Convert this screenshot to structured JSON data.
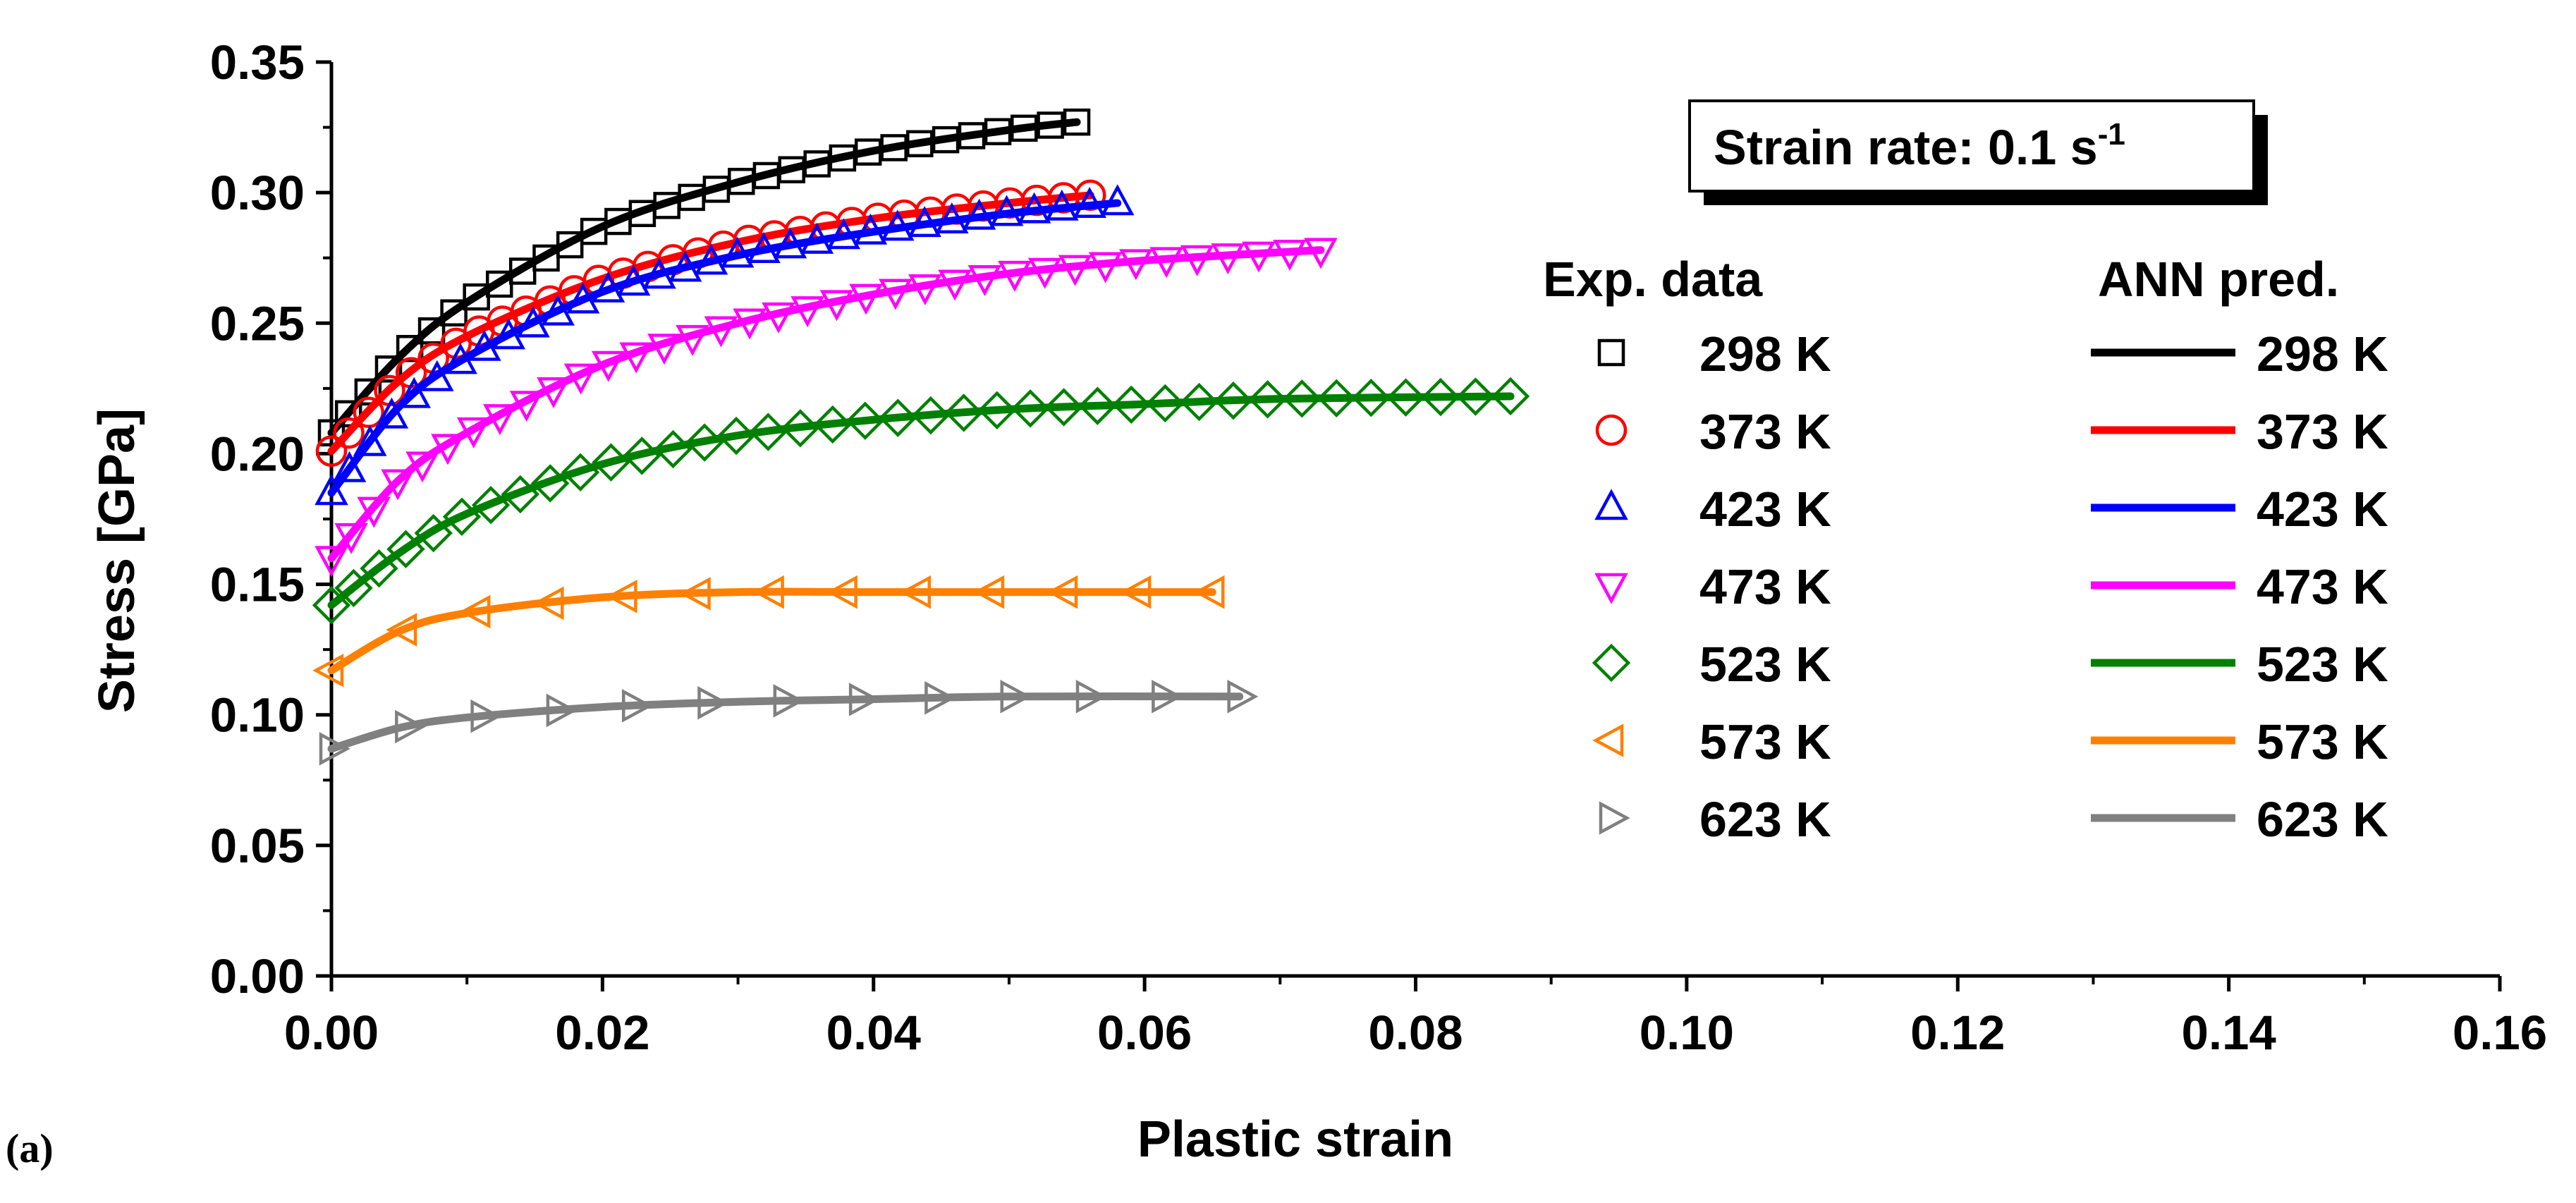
{
  "panel_label": "(a)",
  "chart_data": {
    "type": "line",
    "title": "",
    "xlabel": "Plastic strain",
    "ylabel": "Stress [GPa]",
    "xlim": [
      0.0,
      0.16
    ],
    "ylim": [
      0.0,
      0.35
    ],
    "xticks": [
      "0.00",
      "0.02",
      "0.04",
      "0.06",
      "0.08",
      "0.10",
      "0.12",
      "0.14",
      "0.16"
    ],
    "yticks": [
      "0.00",
      "0.05",
      "0.10",
      "0.15",
      "0.20",
      "0.25",
      "0.30",
      "0.35"
    ],
    "annotation": {
      "text": "Strain rate: 0.1 s",
      "superscript": "-1"
    },
    "legend": {
      "exp_header": "Exp. data",
      "pred_header": "ANN pred.",
      "position": "right"
    },
    "series": [
      {
        "name": "298 K",
        "color": "#000000",
        "marker": "square",
        "x": [
          0.0,
          0.005,
          0.01,
          0.02,
          0.03,
          0.04,
          0.05,
          0.055
        ],
        "y": [
          0.208,
          0.237,
          0.258,
          0.287,
          0.304,
          0.316,
          0.324,
          0.327
        ]
      },
      {
        "name": "373 K",
        "color": "#ff0000",
        "marker": "circle",
        "x": [
          0.0,
          0.005,
          0.01,
          0.02,
          0.03,
          0.04,
          0.05,
          0.056
        ],
        "y": [
          0.201,
          0.228,
          0.245,
          0.267,
          0.281,
          0.29,
          0.296,
          0.299
        ]
      },
      {
        "name": "423 K",
        "color": "#0000ff",
        "marker": "triangle-up",
        "x": [
          0.0,
          0.005,
          0.01,
          0.02,
          0.03,
          0.04,
          0.05,
          0.058
        ],
        "y": [
          0.185,
          0.218,
          0.237,
          0.262,
          0.276,
          0.285,
          0.292,
          0.296
        ]
      },
      {
        "name": "473 K",
        "color": "#ff00ff",
        "marker": "triangle-down",
        "x": [
          0.0,
          0.005,
          0.01,
          0.02,
          0.03,
          0.04,
          0.05,
          0.06,
          0.073
        ],
        "y": [
          0.16,
          0.19,
          0.208,
          0.234,
          0.25,
          0.261,
          0.269,
          0.274,
          0.278
        ]
      },
      {
        "name": "523 K",
        "color": "#008000",
        "marker": "diamond",
        "x": [
          0.0,
          0.005,
          0.01,
          0.02,
          0.03,
          0.04,
          0.05,
          0.06,
          0.07,
          0.087
        ],
        "y": [
          0.142,
          0.162,
          0.177,
          0.196,
          0.207,
          0.213,
          0.217,
          0.219,
          0.221,
          0.222
        ]
      },
      {
        "name": "573 K",
        "color": "#ff8000",
        "marker": "triangle-left",
        "x": [
          0.0,
          0.005,
          0.01,
          0.02,
          0.03,
          0.04,
          0.05,
          0.065
        ],
        "y": [
          0.117,
          0.132,
          0.139,
          0.145,
          0.147,
          0.147,
          0.147,
          0.147
        ]
      },
      {
        "name": "623 K",
        "color": "#808080",
        "marker": "triangle-right",
        "x": [
          0.0,
          0.005,
          0.01,
          0.02,
          0.03,
          0.04,
          0.05,
          0.067
        ],
        "y": [
          0.087,
          0.095,
          0.099,
          0.103,
          0.105,
          0.106,
          0.107,
          0.107
        ]
      }
    ]
  }
}
